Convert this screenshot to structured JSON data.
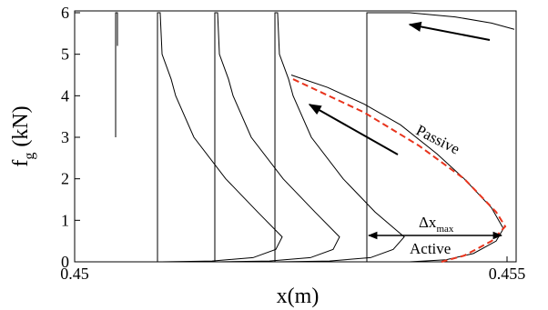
{
  "chart_data": {
    "type": "line",
    "xlabel": "x(m)",
    "ylabel": {
      "main": "f",
      "sub": "g",
      "unit": " (kN)"
    },
    "xlim": [
      0.45,
      0.455
    ],
    "xticks": [
      {
        "value": 0.45,
        "label": "0.45"
      },
      {
        "value": 0.455,
        "label": "0.455"
      }
    ],
    "ylim": [
      0,
      6
    ],
    "yticks": [
      0,
      1,
      2,
      3,
      4,
      5,
      6
    ],
    "series": [
      {
        "color": "#000000",
        "dash": false,
        "x": [
          0.450474,
          0.450474,
          0.450495,
          0.450495
        ],
        "values": [
          3,
          6,
          6,
          5.2
        ]
      },
      {
        "color": "#000000",
        "dash": false,
        "x": [
          0.450958,
          0.450958,
          0.450989,
          0.451011,
          0.451116,
          0.451168,
          0.451379,
          0.451747,
          0.452116,
          0.4524,
          0.452326,
          0.452063,
          0.451589,
          0.451011
        ],
        "values": [
          0,
          6,
          6,
          5,
          4.4,
          4,
          3,
          2,
          1.2,
          0.6,
          0.3,
          0.1,
          0.02,
          0
        ]
      },
      {
        "color": "#000000",
        "dash": false,
        "x": [
          0.451621,
          0.451621,
          0.451653,
          0.451674,
          0.451779,
          0.451832,
          0.452042,
          0.452411,
          0.452779,
          0.453063,
          0.452989,
          0.452726,
          0.452253,
          0.451674
        ],
        "values": [
          0,
          6,
          6,
          5,
          4.4,
          4,
          3,
          2,
          1.2,
          0.6,
          0.3,
          0.1,
          0.02,
          0
        ]
      },
      {
        "color": "#000000",
        "dash": false,
        "x": [
          0.452316,
          0.452316,
          0.452347,
          0.452368,
          0.452474,
          0.452526,
          0.452737,
          0.453105,
          0.453474,
          0.453811,
          0.453684,
          0.453421,
          0.452947,
          0.452368
        ],
        "values": [
          0,
          6,
          6,
          5,
          4.4,
          4,
          3,
          2,
          1.2,
          0.6,
          0.3,
          0.1,
          0.02,
          0
        ]
      },
      {
        "color": "#000000",
        "dash": false,
        "x": [
          0.455084,
          0.454821,
          0.4544,
          0.453874,
          0.453453,
          0.453379,
          0.453379,
          0.453874,
          0.454295,
          0.454611,
          0.454874,
          0.454958,
          0.454821,
          0.454505,
          0.45419,
          0.453768,
          0.453347,
          0.452926,
          0.452505
        ],
        "values": [
          5.6,
          5.75,
          5.9,
          6,
          6,
          6,
          0,
          0,
          0.05,
          0.2,
          0.5,
          0.8,
          1.3,
          2,
          2.6,
          3.3,
          3.8,
          4.2,
          4.5
        ]
      },
      {
        "color": "#e8331c",
        "dash": true,
        "x": [
          0.452526,
          0.453347,
          0.453979,
          0.454505,
          0.454874,
          0.454979,
          0.454821,
          0.454505,
          0.454242
        ],
        "values": [
          4.4,
          3.6,
          2.8,
          2,
          1.2,
          0.85,
          0.5,
          0.15,
          0
        ]
      }
    ],
    "annotations": {
      "passive": "Passive",
      "active": "Active",
      "delta": {
        "main": "Δx",
        "sub": "max"
      }
    }
  }
}
